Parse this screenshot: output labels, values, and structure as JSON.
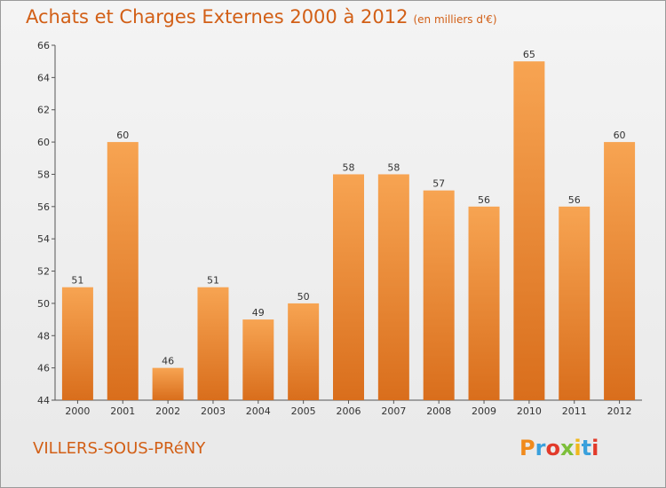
{
  "chart_data": {
    "type": "bar",
    "title": "Achats et Charges Externes 2000 à 2012",
    "subtitle": "(en milliers d'€)",
    "categories": [
      "2000",
      "2001",
      "2002",
      "2003",
      "2004",
      "2005",
      "2006",
      "2007",
      "2008",
      "2009",
      "2010",
      "2011",
      "2012"
    ],
    "values": [
      51,
      60,
      46,
      51,
      49,
      50,
      58,
      58,
      57,
      56,
      65,
      56,
      60
    ],
    "ylim": [
      44,
      66
    ],
    "yticks": [
      44,
      46,
      48,
      50,
      52,
      54,
      56,
      58,
      60,
      62,
      64,
      66
    ],
    "grid": false,
    "bar_color_light": "#f7a452",
    "bar_color_dark": "#d96e1c"
  },
  "footer": {
    "commune": "VILLERS-SOUS-PRéNY",
    "logo_text": "Proxiti",
    "logo_colors": [
      "#f08a1c",
      "#3aa0dc",
      "#e23a2a",
      "#7dbf3a",
      "#f0b81c",
      "#3aa0dc",
      "#e23a2a"
    ]
  },
  "colors": {
    "accent": "#d25f16"
  }
}
